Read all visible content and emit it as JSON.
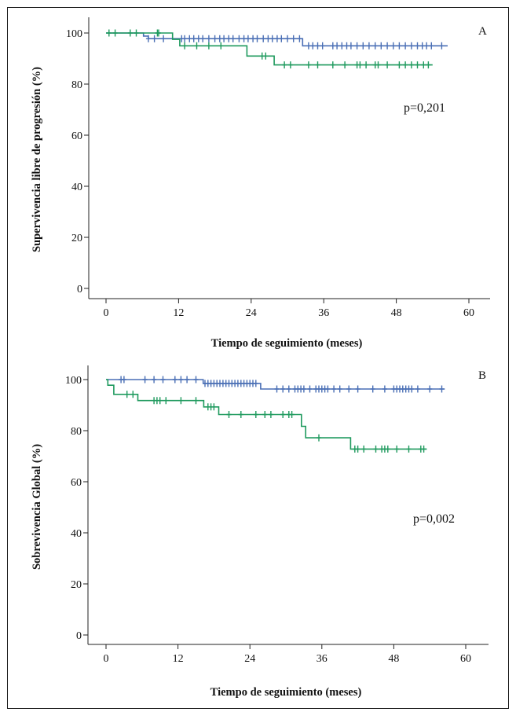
{
  "chart_data": [
    {
      "type": "line",
      "panel_label": "A",
      "annotation": "p=0,201",
      "xlabel": "Tiempo de seguimiento (meses)",
      "ylabel": "Supervivencia libre de progresión (%)",
      "xlim": [
        0,
        60
      ],
      "ylim": [
        0,
        100
      ],
      "xticks": [
        0,
        12,
        24,
        36,
        48,
        60
      ],
      "yticks": [
        0,
        20,
        40,
        60,
        80,
        100
      ],
      "grid": false,
      "series": [
        {
          "color": "#4a6fb5",
          "steps": [
            [
              0,
              100
            ],
            [
              6.2,
              98.8
            ],
            [
              7,
              97.8
            ],
            [
              32,
              97.8
            ],
            [
              32.5,
              95
            ],
            [
              56.5,
              95
            ]
          ],
          "censors": [
            7,
            8,
            9.5,
            12.5,
            13,
            13.8,
            14.5,
            15.3,
            16,
            17,
            18,
            18.8,
            19.5,
            20.3,
            21,
            22,
            22.8,
            23.5,
            24.3,
            25,
            26,
            26.8,
            27.5,
            28.3,
            29,
            30,
            31,
            32,
            33.5,
            34.2,
            35,
            35.8,
            37.5,
            38.2,
            39,
            39.8,
            40.5,
            41.5,
            42.5,
            43.5,
            44.5,
            45.5,
            46.5,
            47.5,
            48.5,
            49.5,
            50.5,
            51.5,
            52.3,
            53,
            53.8,
            55.5
          ]
        },
        {
          "color": "#1f9a5e",
          "steps": [
            [
              0,
              100
            ],
            [
              11,
              97.5
            ],
            [
              12.2,
              95
            ],
            [
              23,
              95
            ],
            [
              23.3,
              91
            ],
            [
              27.5,
              91
            ],
            [
              27.8,
              87.5
            ],
            [
              54,
              87.5
            ]
          ],
          "censors": [
            0.5,
            1.5,
            4,
            5,
            8.5,
            8.7,
            13,
            15,
            17,
            19,
            25.8,
            26.4,
            29.5,
            30.5,
            33.5,
            35,
            37.5,
            39.5,
            41.5,
            42,
            43,
            44.5,
            45,
            46.5,
            48.5,
            49.5,
            50.5,
            51.5,
            52.5,
            53.3
          ]
        }
      ]
    },
    {
      "type": "line",
      "panel_label": "B",
      "annotation": "p=0,002",
      "xlabel": "Tiempo de seguimiento (meses)",
      "ylabel": "Sobrevivencia Global (%)",
      "xlim": [
        0,
        60
      ],
      "ylim": [
        0,
        100
      ],
      "xticks": [
        0,
        12,
        24,
        36,
        48,
        60
      ],
      "yticks": [
        0,
        20,
        40,
        60,
        80,
        100
      ],
      "grid": false,
      "series": [
        {
          "color": "#4a6fb5",
          "steps": [
            [
              0,
              100
            ],
            [
              16.2,
              98.5
            ],
            [
              25.5,
              98.5
            ],
            [
              25.8,
              96.3
            ],
            [
              56.5,
              96.3
            ]
          ],
          "censors": [
            2.5,
            3,
            6.5,
            8,
            9.5,
            11.5,
            12.5,
            13.5,
            15,
            16.5,
            17,
            17.5,
            18,
            18.5,
            19,
            19.5,
            20,
            20.5,
            21,
            21.5,
            22,
            22.5,
            23,
            23.5,
            24,
            24.5,
            25,
            28.5,
            29.5,
            30.5,
            31.5,
            32,
            32.5,
            33,
            34,
            35,
            35.5,
            36,
            36.5,
            37,
            38,
            39,
            40.5,
            42,
            44.5,
            46.5,
            48,
            48.5,
            49,
            49.5,
            50,
            50.5,
            51,
            52,
            54,
            56
          ]
        },
        {
          "color": "#1f9a5e",
          "steps": [
            [
              0,
              100
            ],
            [
              0.3,
              97.8
            ],
            [
              1.3,
              94.2
            ],
            [
              5,
              94.2
            ],
            [
              5.3,
              91.8
            ],
            [
              16,
              91.8
            ],
            [
              16.3,
              89.3
            ],
            [
              18.5,
              89.3
            ],
            [
              18.8,
              86.3
            ],
            [
              32.3,
              86.3
            ],
            [
              32.6,
              81.7
            ],
            [
              33,
              81.7
            ],
            [
              33.3,
              77.2
            ],
            [
              40.5,
              77.2
            ],
            [
              40.8,
              72.8
            ],
            [
              53.5,
              72.8
            ]
          ],
          "censors": [
            3.5,
            4.5,
            8,
            8.5,
            9,
            10,
            12.5,
            15,
            17,
            17.5,
            18,
            20.5,
            22.5,
            25,
            26.5,
            27.5,
            29.5,
            30.5,
            31,
            35.5,
            41.5,
            42,
            43,
            45,
            46,
            46.5,
            47,
            48.5,
            50.5,
            52.5,
            53
          ]
        }
      ]
    }
  ]
}
